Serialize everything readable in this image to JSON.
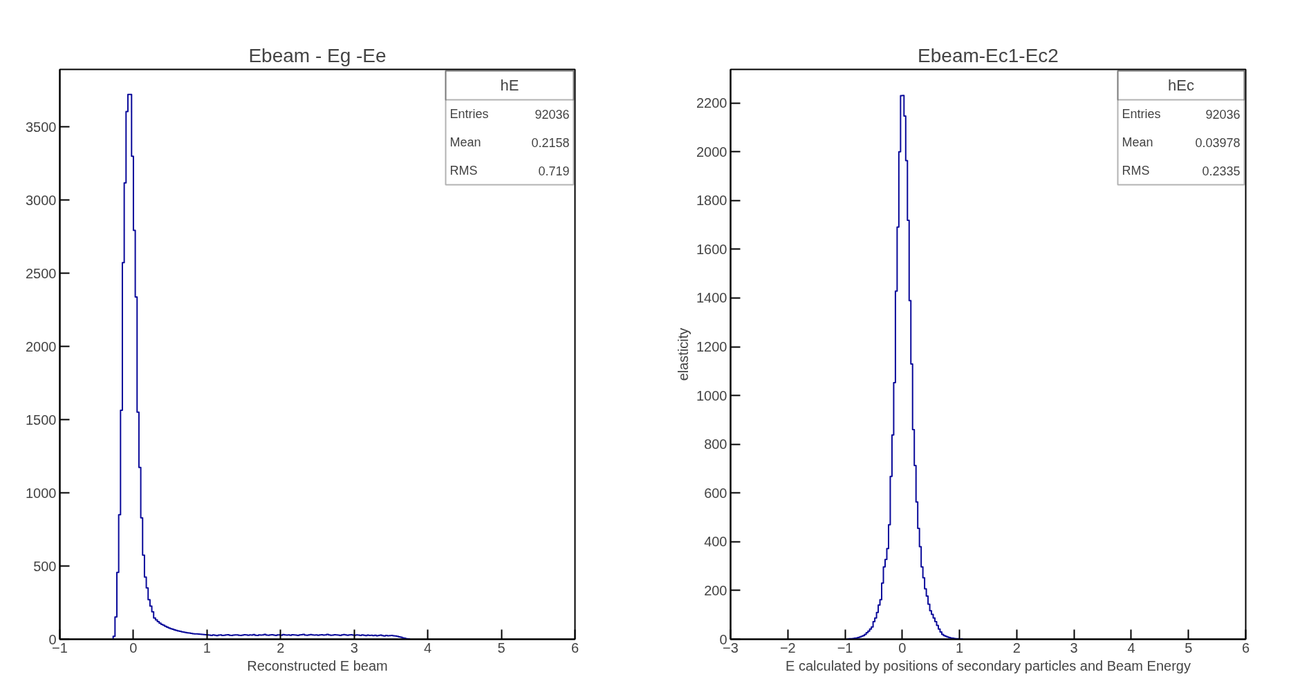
{
  "chart_data": [
    {
      "type": "histogram",
      "title": "Ebeam - Eg -Ee",
      "xlabel": "Reconstructed E beam",
      "color": "#0a0a9a",
      "xlim": [
        -1,
        6
      ],
      "ylim": [
        0,
        3893
      ],
      "xticks": [
        -1,
        0,
        1,
        2,
        3,
        4,
        5,
        6
      ],
      "yticks": [
        0,
        500,
        1000,
        1500,
        2000,
        2500,
        3000,
        3500
      ],
      "grid": false,
      "annotations": [
        "hE",
        "Entries",
        "92036",
        "Mean",
        "0.2158",
        "RMS",
        "0.719"
      ],
      "bins": [
        -0.275,
        -0.25,
        -0.225,
        -0.2,
        -0.175,
        -0.15,
        -0.125,
        -0.1,
        -0.075,
        -0.05,
        -0.025,
        0,
        0.025,
        0.05,
        0.075,
        0.1,
        0.125,
        0.15,
        0.175,
        0.2,
        0.225,
        0.25,
        0.275,
        0.3,
        0.325,
        0.35,
        0.375,
        0.4,
        0.425,
        0.45,
        0.475,
        0.5,
        0.525,
        0.55,
        0.575,
        0.6,
        0.625,
        0.65,
        0.675,
        0.7,
        0.725,
        0.75,
        0.775,
        0.8,
        0.825,
        0.85,
        0.875,
        0.9,
        0.925,
        0.95,
        0.975,
        1.0,
        1.025,
        1.05,
        1.075,
        1.1,
        1.125,
        1.15,
        1.175,
        1.2,
        1.225,
        1.25,
        1.275,
        1.3,
        1.325,
        1.35,
        1.375,
        1.4,
        1.425,
        1.45,
        1.475,
        1.5,
        1.525,
        1.55,
        1.575,
        1.6,
        1.625,
        1.65,
        1.675,
        1.7,
        1.725,
        1.75,
        1.775,
        1.8,
        1.825,
        1.85,
        1.875,
        1.9,
        1.925,
        1.95,
        1.975,
        2.0,
        2.025,
        2.05,
        2.075,
        2.1,
        2.125,
        2.15,
        2.175,
        2.2,
        2.225,
        2.25,
        2.275,
        2.3,
        2.325,
        2.35,
        2.375,
        2.4,
        2.425,
        2.45,
        2.475,
        2.5,
        2.525,
        2.55,
        2.575,
        2.6,
        2.625,
        2.65,
        2.675,
        2.7,
        2.725,
        2.75,
        2.775,
        2.8,
        2.825,
        2.85,
        2.875,
        2.9,
        2.925,
        2.95,
        2.975,
        3.0,
        3.025,
        3.05,
        3.075,
        3.1,
        3.125,
        3.15,
        3.175,
        3.2,
        3.225,
        3.25,
        3.275,
        3.3,
        3.325,
        3.35,
        3.375,
        3.4,
        3.425,
        3.45,
        3.475,
        3.5,
        3.525,
        3.55,
        3.575,
        3.6,
        3.625,
        3.65,
        3.675,
        3.7,
        3.725,
        3.75
      ],
      "values": [
        20,
        152,
        457,
        850,
        1564,
        2573,
        3118,
        3605,
        3722,
        3722,
        3300,
        2793,
        2338,
        1551,
        1174,
        829,
        575,
        425,
        350,
        270,
        227,
        187,
        145,
        132,
        120,
        110,
        102,
        95,
        88,
        82,
        77,
        72,
        68,
        64,
        60,
        57,
        54,
        51,
        48,
        46,
        44,
        42,
        40,
        38,
        37,
        36,
        35,
        34,
        33,
        32,
        31,
        30,
        28,
        26,
        29,
        27,
        25,
        28,
        30,
        26,
        27,
        29,
        31,
        27,
        26,
        28,
        30,
        29,
        27,
        26,
        28,
        31,
        29,
        27,
        30,
        28,
        32,
        27,
        26,
        29,
        28,
        30,
        33,
        28,
        27,
        29,
        31,
        28,
        26,
        30,
        29,
        27,
        32,
        30,
        28,
        29,
        27,
        31,
        30,
        28,
        26,
        29,
        31,
        33,
        28,
        27,
        30,
        32,
        29,
        28,
        30,
        27,
        29,
        31,
        28,
        30,
        33,
        29,
        27,
        28,
        31,
        30,
        28,
        26,
        29,
        32,
        30,
        27,
        29,
        31,
        28,
        27,
        30,
        28,
        26,
        29,
        27,
        25,
        28,
        26,
        27,
        25,
        27,
        24,
        26,
        28,
        25,
        23,
        26,
        24,
        25,
        26,
        24,
        22,
        20,
        17,
        14,
        10,
        7,
        4,
        2
      ]
    },
    {
      "type": "histogram",
      "title": "Ebeam-Ec1-Ec2",
      "xlabel": "E calculated by positions of secondary particles and Beam Energy",
      "ylabel": "elasticity",
      "color": "#0a0a9a",
      "xlim": [
        -3,
        6
      ],
      "ylim": [
        0,
        2338
      ],
      "xticks": [
        -3,
        -2,
        -1,
        0,
        1,
        2,
        3,
        4,
        5,
        6
      ],
      "yticks": [
        0,
        200,
        400,
        600,
        800,
        1000,
        1200,
        1400,
        1600,
        1800,
        2000,
        2200
      ],
      "grid": false,
      "annotations": [
        "hEc",
        "Entries",
        "92036",
        "Mean",
        "0.03978",
        "RMS",
        "0.2335"
      ],
      "bins": [
        -0.96,
        -0.93,
        -0.9,
        -0.87,
        -0.84,
        -0.81,
        -0.78,
        -0.75,
        -0.72,
        -0.69,
        -0.66,
        -0.63,
        -0.6,
        -0.57,
        -0.54,
        -0.51,
        -0.48,
        -0.45,
        -0.42,
        -0.39,
        -0.36,
        -0.33,
        -0.3,
        -0.27,
        -0.24,
        -0.21,
        -0.18,
        -0.15,
        -0.12,
        -0.09,
        -0.06,
        -0.03,
        0,
        0.03,
        0.06,
        0.09,
        0.12,
        0.15,
        0.18,
        0.21,
        0.24,
        0.27,
        0.3,
        0.33,
        0.36,
        0.39,
        0.42,
        0.45,
        0.48,
        0.51,
        0.54,
        0.57,
        0.6,
        0.63,
        0.66,
        0.69,
        0.72,
        0.75,
        0.78,
        0.81,
        0.84,
        0.87,
        0.9,
        0.93,
        0.96,
        0.99,
        1.02,
        1.05
      ],
      "values": [
        1,
        2,
        2,
        3,
        4,
        5,
        7,
        9,
        12,
        15,
        20,
        27,
        33,
        42,
        50,
        72,
        87,
        110,
        140,
        162,
        230,
        297,
        327,
        372,
        470,
        668,
        838,
        1053,
        1428,
        1691,
        2000,
        2230,
        2231,
        2147,
        1964,
        1719,
        1389,
        1129,
        860,
        713,
        563,
        455,
        380,
        297,
        252,
        207,
        177,
        144,
        117,
        102,
        87,
        72,
        57,
        42,
        30,
        20,
        15,
        12,
        9,
        7,
        5,
        4,
        3,
        2,
        2,
        1,
        1
      ]
    }
  ]
}
